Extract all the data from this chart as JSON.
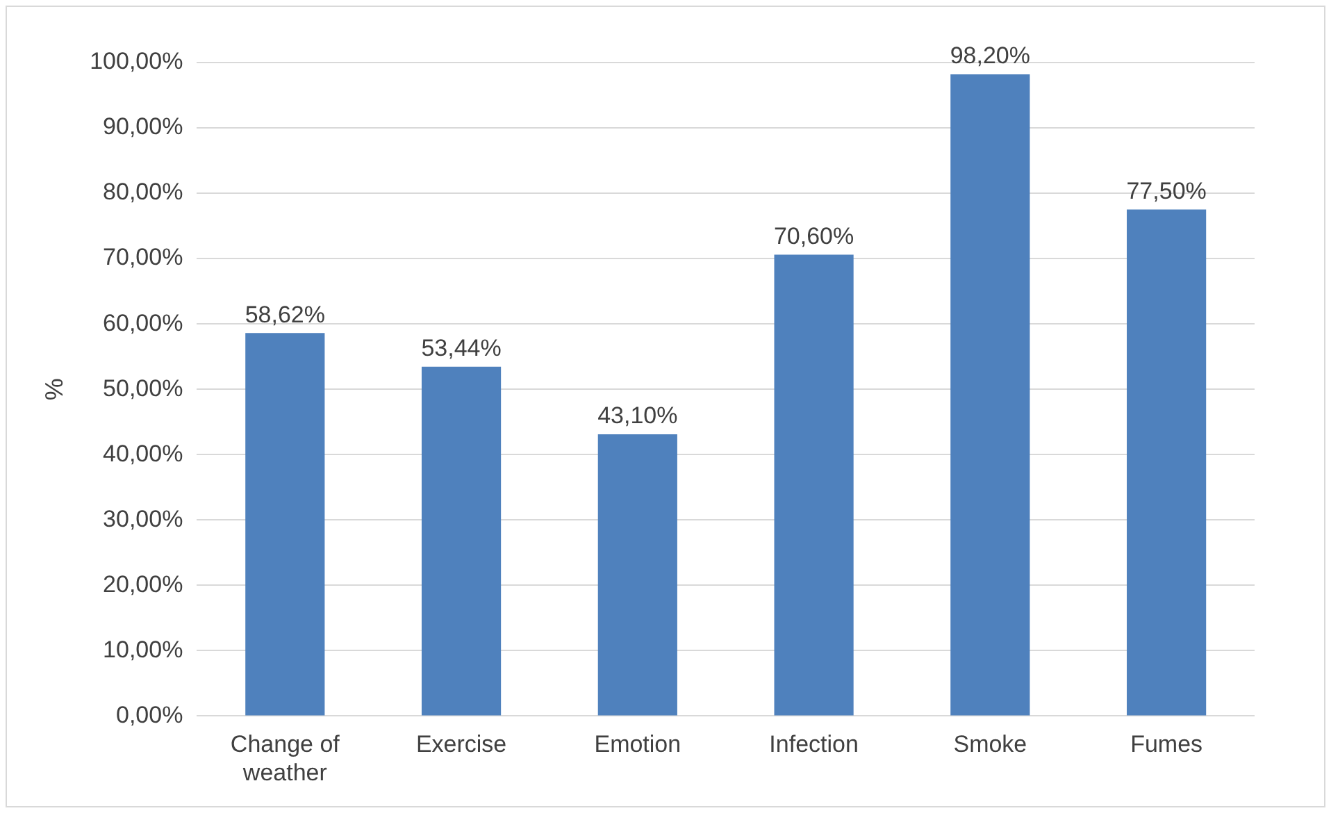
{
  "chart_data": {
    "type": "bar",
    "ylabel": "%",
    "categories": [
      "Change of weather",
      "Exercise",
      "Emotion",
      "Infection",
      "Smoke",
      "Fumes"
    ],
    "values": [
      58.62,
      53.44,
      43.1,
      70.6,
      98.2,
      77.5
    ],
    "value_labels": [
      "58,62%",
      "53,44%",
      "43,10%",
      "70,60%",
      "98,20%",
      "77,50%"
    ],
    "color": "#4f81bd",
    "ylim": [
      0,
      100
    ],
    "yticks": [
      {
        "value": 0,
        "label": "0,00%"
      },
      {
        "value": 10,
        "label": "10,00%"
      },
      {
        "value": 20,
        "label": "20,00%"
      },
      {
        "value": 30,
        "label": "30,00%"
      },
      {
        "value": 40,
        "label": "40,00%"
      },
      {
        "value": 50,
        "label": "50,00%"
      },
      {
        "value": 60,
        "label": "60,00%"
      },
      {
        "value": 70,
        "label": "70,00%"
      },
      {
        "value": 80,
        "label": "80,00%"
      },
      {
        "value": 90,
        "label": "90,00%"
      },
      {
        "value": 100,
        "label": "100,00%"
      }
    ],
    "grid": "y"
  }
}
